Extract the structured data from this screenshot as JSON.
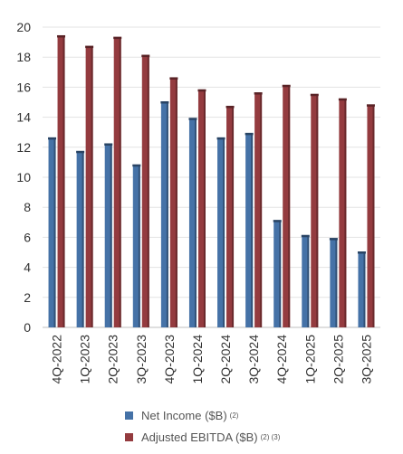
{
  "chart_data": {
    "type": "bar",
    "categories": [
      "4Q-2022",
      "1Q-2023",
      "2Q-2023",
      "3Q-2023",
      "4Q-2023",
      "1Q-2024",
      "2Q-2024",
      "3Q-2024",
      "4Q-2024",
      "1Q-2025",
      "2Q-2025",
      "3Q-2025"
    ],
    "series": [
      {
        "name": "Net Income ($B)",
        "note": "(2)",
        "color": "#4572A7",
        "values": [
          12.6,
          11.7,
          12.2,
          10.8,
          15.0,
          13.9,
          12.6,
          12.9,
          7.1,
          6.1,
          5.9,
          5.0
        ]
      },
      {
        "name": "Adjusted EBITDA ($B)",
        "note": "(2) (3)",
        "color": "#943B3F",
        "values": [
          19.4,
          18.7,
          19.3,
          18.1,
          16.6,
          15.8,
          14.7,
          15.6,
          16.1,
          15.5,
          15.2,
          14.8
        ]
      }
    ],
    "y_ticks": [
      "0",
      "2",
      "4",
      "6",
      "8",
      "10",
      "12",
      "14",
      "16",
      "18",
      "20"
    ],
    "ylim": [
      0,
      20
    ],
    "grid": true,
    "legend_position": "bottom"
  }
}
